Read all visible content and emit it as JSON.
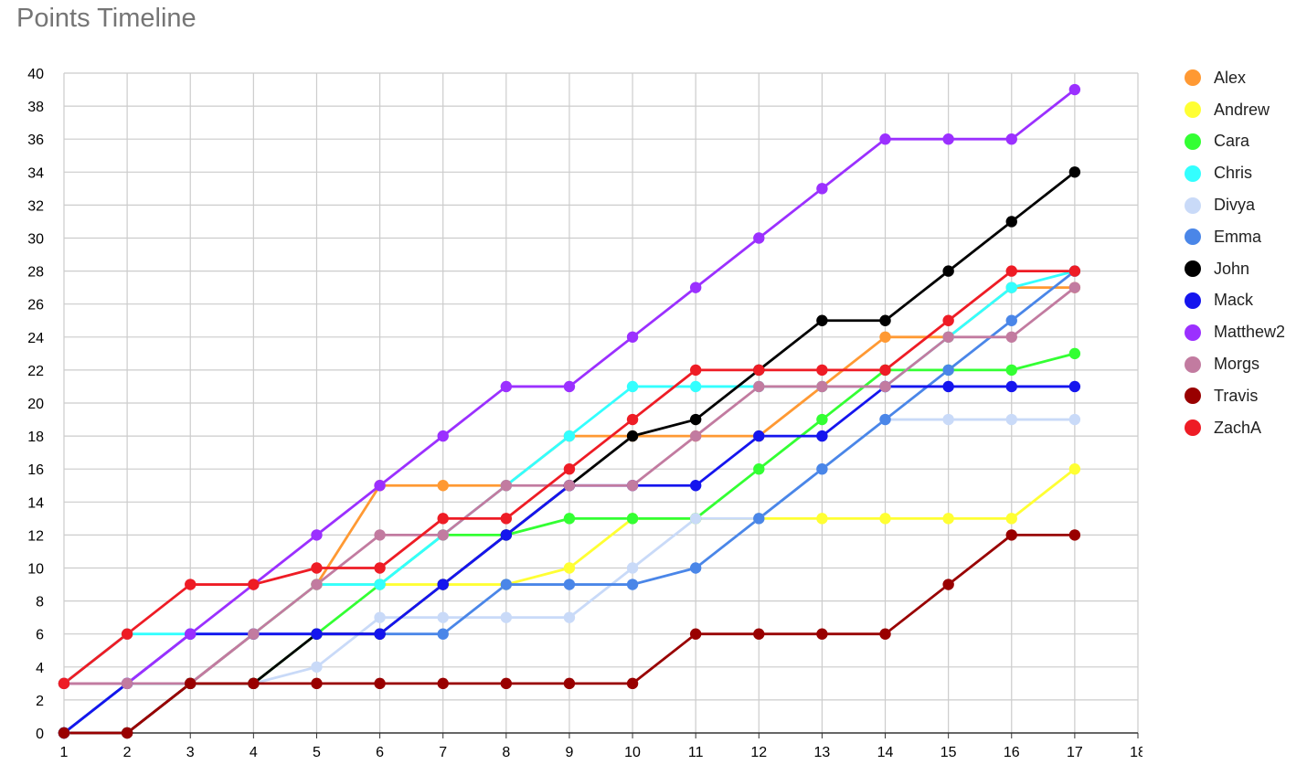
{
  "chart_data": {
    "type": "line",
    "title": "Points Timeline",
    "xlabel": "",
    "ylabel": "",
    "x": [
      1,
      2,
      3,
      4,
      5,
      6,
      7,
      8,
      9,
      10,
      11,
      12,
      13,
      14,
      15,
      16,
      17
    ],
    "xlim": [
      1,
      18
    ],
    "ylim": [
      0,
      40
    ],
    "x_ticks": [
      1,
      2,
      3,
      4,
      5,
      6,
      7,
      8,
      9,
      10,
      11,
      12,
      13,
      14,
      15,
      16,
      17,
      18
    ],
    "y_ticks": [
      0,
      2,
      4,
      6,
      8,
      10,
      12,
      14,
      16,
      18,
      20,
      22,
      24,
      26,
      28,
      30,
      32,
      34,
      36,
      38,
      40
    ],
    "grid": true,
    "legend_position": "right",
    "series": [
      {
        "name": "Alex",
        "color": "#ff9933",
        "values": [
          3,
          3,
          3,
          6,
          9,
          15,
          15,
          15,
          18,
          18,
          18,
          18,
          21,
          24,
          24,
          27,
          27
        ]
      },
      {
        "name": "Andrew",
        "color": "#ffff33",
        "values": [
          3,
          3,
          3,
          6,
          9,
          9,
          9,
          9,
          10,
          13,
          13,
          13,
          13,
          13,
          13,
          13,
          16
        ]
      },
      {
        "name": "Cara",
        "color": "#33ff33",
        "values": [
          0,
          3,
          3,
          3,
          6,
          9,
          12,
          12,
          13,
          13,
          13,
          16,
          19,
          22,
          22,
          22,
          23
        ]
      },
      {
        "name": "Chris",
        "color": "#33ffff",
        "values": [
          3,
          6,
          6,
          6,
          9,
          9,
          12,
          15,
          18,
          21,
          21,
          21,
          21,
          21,
          24,
          27,
          28
        ]
      },
      {
        "name": "Divya",
        "color": "#c9daf8",
        "values": [
          0,
          3,
          3,
          3,
          4,
          7,
          7,
          7,
          7,
          10,
          13,
          13,
          16,
          19,
          19,
          19,
          19
        ]
      },
      {
        "name": "Emma",
        "color": "#4a86e8",
        "values": [
          0,
          3,
          3,
          6,
          6,
          6,
          6,
          9,
          9,
          9,
          10,
          13,
          16,
          19,
          22,
          25,
          28
        ]
      },
      {
        "name": "John",
        "color": "#000000",
        "values": [
          0,
          0,
          3,
          3,
          6,
          6,
          9,
          12,
          15,
          18,
          19,
          22,
          25,
          25,
          28,
          31,
          34
        ]
      },
      {
        "name": "Mack",
        "color": "#1515ee",
        "values": [
          0,
          3,
          6,
          6,
          6,
          6,
          9,
          12,
          15,
          15,
          15,
          18,
          18,
          21,
          21,
          21,
          21
        ]
      },
      {
        "name": "Matthew2",
        "color": "#9b30ff",
        "values": [
          3,
          3,
          6,
          9,
          12,
          15,
          18,
          21,
          21,
          24,
          27,
          30,
          33,
          36,
          36,
          36,
          39
        ]
      },
      {
        "name": "Morgs",
        "color": "#c27ba0",
        "values": [
          3,
          3,
          3,
          6,
          9,
          12,
          12,
          15,
          15,
          15,
          18,
          21,
          21,
          21,
          24,
          24,
          27
        ]
      },
      {
        "name": "Travis",
        "color": "#990000",
        "values": [
          0,
          0,
          3,
          3,
          3,
          3,
          3,
          3,
          3,
          3,
          6,
          6,
          6,
          6,
          9,
          12,
          12
        ]
      },
      {
        "name": "ZachA",
        "color": "#ee1c25",
        "values": [
          3,
          6,
          9,
          9,
          10,
          10,
          13,
          13,
          16,
          19,
          22,
          22,
          22,
          22,
          25,
          28,
          28
        ]
      }
    ]
  }
}
